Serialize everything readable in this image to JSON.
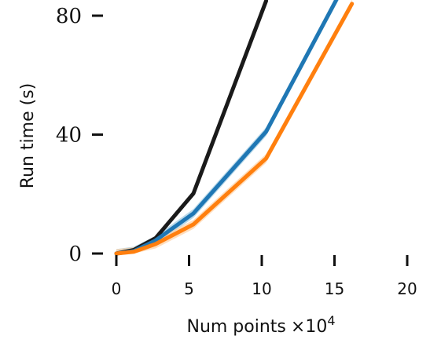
{
  "chart_data": {
    "type": "line",
    "xlabel": "Num points",
    "xlabel_exponent_prefix": "×10",
    "xlabel_exponent": "4",
    "ylabel": "Run time (s)",
    "xlim": [
      0,
      20
    ],
    "ylim": [
      0,
      80
    ],
    "xticks": [
      0,
      5,
      10,
      15,
      20
    ],
    "yticks": [
      0,
      40,
      80
    ],
    "grid": false,
    "series": [
      {
        "color": "#1a1a1a",
        "x": [
          0,
          1.2,
          2.7,
          5.3,
          10.3
        ],
        "y": [
          0,
          1.2,
          5.2,
          20.2,
          85
        ],
        "band": 0
      },
      {
        "color": "#1f77b4",
        "band_color": "#9ecae1",
        "x": [
          0,
          1.2,
          2.7,
          5.3,
          10.3,
          15.2
        ],
        "y": [
          0,
          0.8,
          4.4,
          13.5,
          41,
          86
        ],
        "band": 1.5
      },
      {
        "color": "#ff7f0e",
        "band_color": "#fdd0a2",
        "x": [
          0,
          1.2,
          2.7,
          5.3,
          10.3,
          16.2
        ],
        "y": [
          0,
          0.6,
          3.2,
          9.8,
          32,
          84
        ],
        "band": 1.5
      }
    ]
  }
}
